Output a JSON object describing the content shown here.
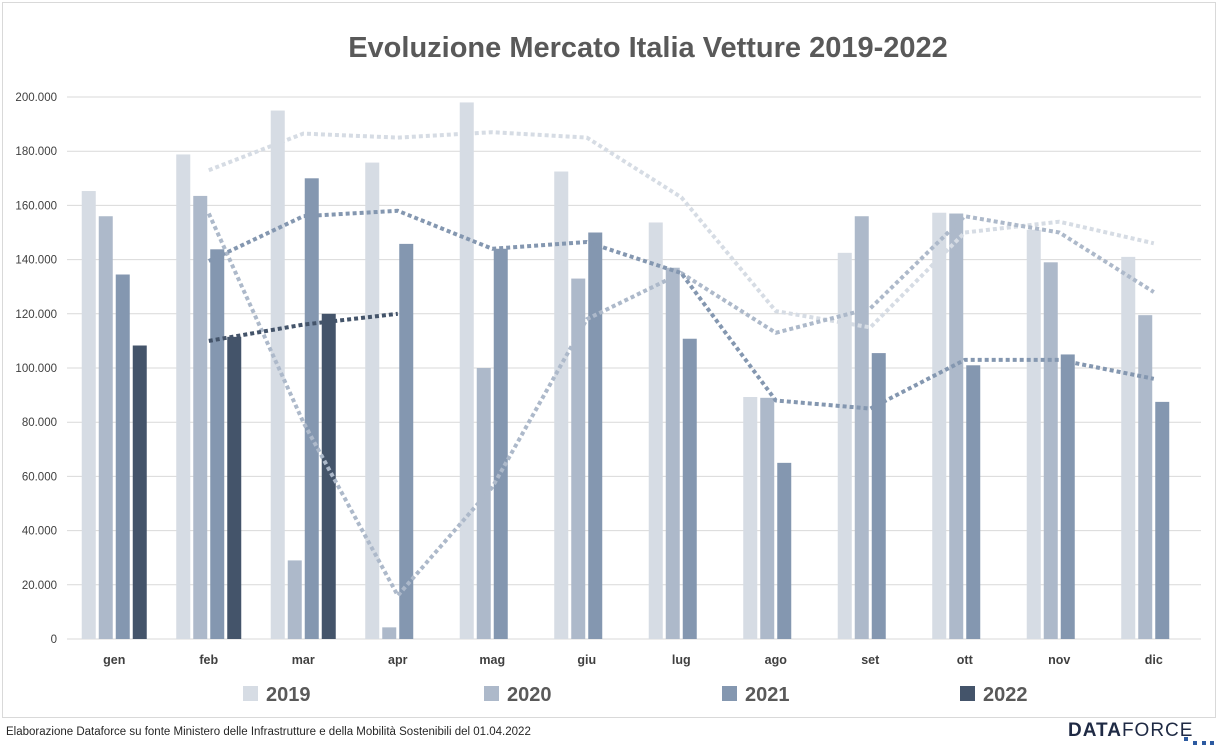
{
  "chart_data": {
    "type": "bar",
    "title": "Evoluzione Mercato Italia Vetture 2019-2022",
    "categories": [
      "gen",
      "feb",
      "mar",
      "apr",
      "mag",
      "giu",
      "lug",
      "ago",
      "set",
      "ott",
      "nov",
      "dic"
    ],
    "ylim": [
      0,
      200000
    ],
    "yticks": [
      "0",
      "20.000",
      "40.000",
      "60.000",
      "80.000",
      "100.000",
      "120.000",
      "140.000",
      "160.000",
      "180.000",
      "200.000"
    ],
    "grid": true,
    "legend_position": "bottom",
    "series": [
      {
        "name": "2019",
        "color": "#d6dce4",
        "values": [
          165300,
          178800,
          195000,
          175800,
          198000,
          172500,
          153700,
          89300,
          142500,
          157300,
          151000,
          141000
        ]
      },
      {
        "name": "2020",
        "color": "#adb9ca",
        "values": [
          156000,
          163500,
          29000,
          4300,
          100000,
          133000,
          137000,
          89000,
          156000,
          157000,
          139000,
          119500
        ]
      },
      {
        "name": "2021",
        "color": "#8497b0",
        "values": [
          134500,
          143800,
          170000,
          145800,
          144000,
          150000,
          110800,
          65000,
          105500,
          101000,
          105000,
          87500
        ]
      },
      {
        "name": "2022",
        "color": "#44546a",
        "values": [
          108300,
          111500,
          120000,
          null,
          null,
          null,
          null,
          null,
          null,
          null,
          null,
          null
        ]
      }
    ],
    "trendlines": [
      {
        "series": "2019",
        "color": "#d6dce4",
        "values": [
          null,
          173000,
          186500,
          185000,
          187000,
          185000,
          163000,
          121000,
          115000,
          150000,
          154000,
          146000
        ]
      },
      {
        "series": "2020",
        "color": "#adb9ca",
        "values": [
          null,
          157000,
          80000,
          16000,
          56000,
          118000,
          135000,
          113000,
          122000,
          156000,
          150000,
          128000
        ]
      },
      {
        "series": "2021",
        "color": "#8497b0",
        "values": [
          null,
          139500,
          156000,
          158000,
          144000,
          146500,
          135000,
          88000,
          85000,
          103000,
          103000,
          96000
        ]
      },
      {
        "series": "2022",
        "color": "#44546a",
        "values": [
          null,
          110000,
          116000,
          120000,
          null,
          null,
          null,
          null,
          null,
          null,
          null,
          null
        ]
      }
    ]
  },
  "footer": {
    "source": "Elaborazione Dataforce su fonte Ministero delle Infrastrutture e della Mobilità Sostenibili del 01.04.2022",
    "brand_bold": "DATA",
    "brand_rest": "FORCE"
  }
}
